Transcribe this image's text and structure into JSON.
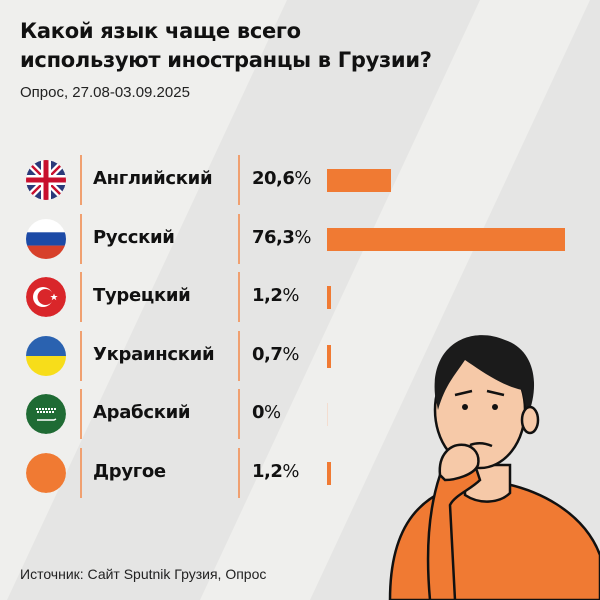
{
  "title_line1": "Какой язык чаще всего",
  "title_line2": "используют иностранцы в Грузии?",
  "subtitle": "Опрос, 27.08-03.09.2025",
  "source": "Источник: Сайт Sputnik Грузия, Опрос",
  "colors": {
    "accent": "#f07a33",
    "background": "#efefed",
    "stripe": "#e5e5e4"
  },
  "chart_data": {
    "type": "bar",
    "orientation": "horizontal",
    "categories": [
      "Английский",
      "Русский",
      "Турецкий",
      "Украинский",
      "Арабский",
      "Другое"
    ],
    "values": [
      20.6,
      76.3,
      1.2,
      0.7,
      0,
      1.2
    ],
    "value_labels": [
      "20,6",
      "76,3",
      "1,2",
      "0,7",
      "0",
      "1,2"
    ],
    "unit": "%",
    "icons": [
      "uk-flag-icon",
      "russia-flag-icon",
      "turkey-flag-icon",
      "ukraine-flag-icon",
      "saudi-flag-icon",
      "orange-circle-icon"
    ],
    "xlim": [
      0,
      76.3
    ]
  }
}
